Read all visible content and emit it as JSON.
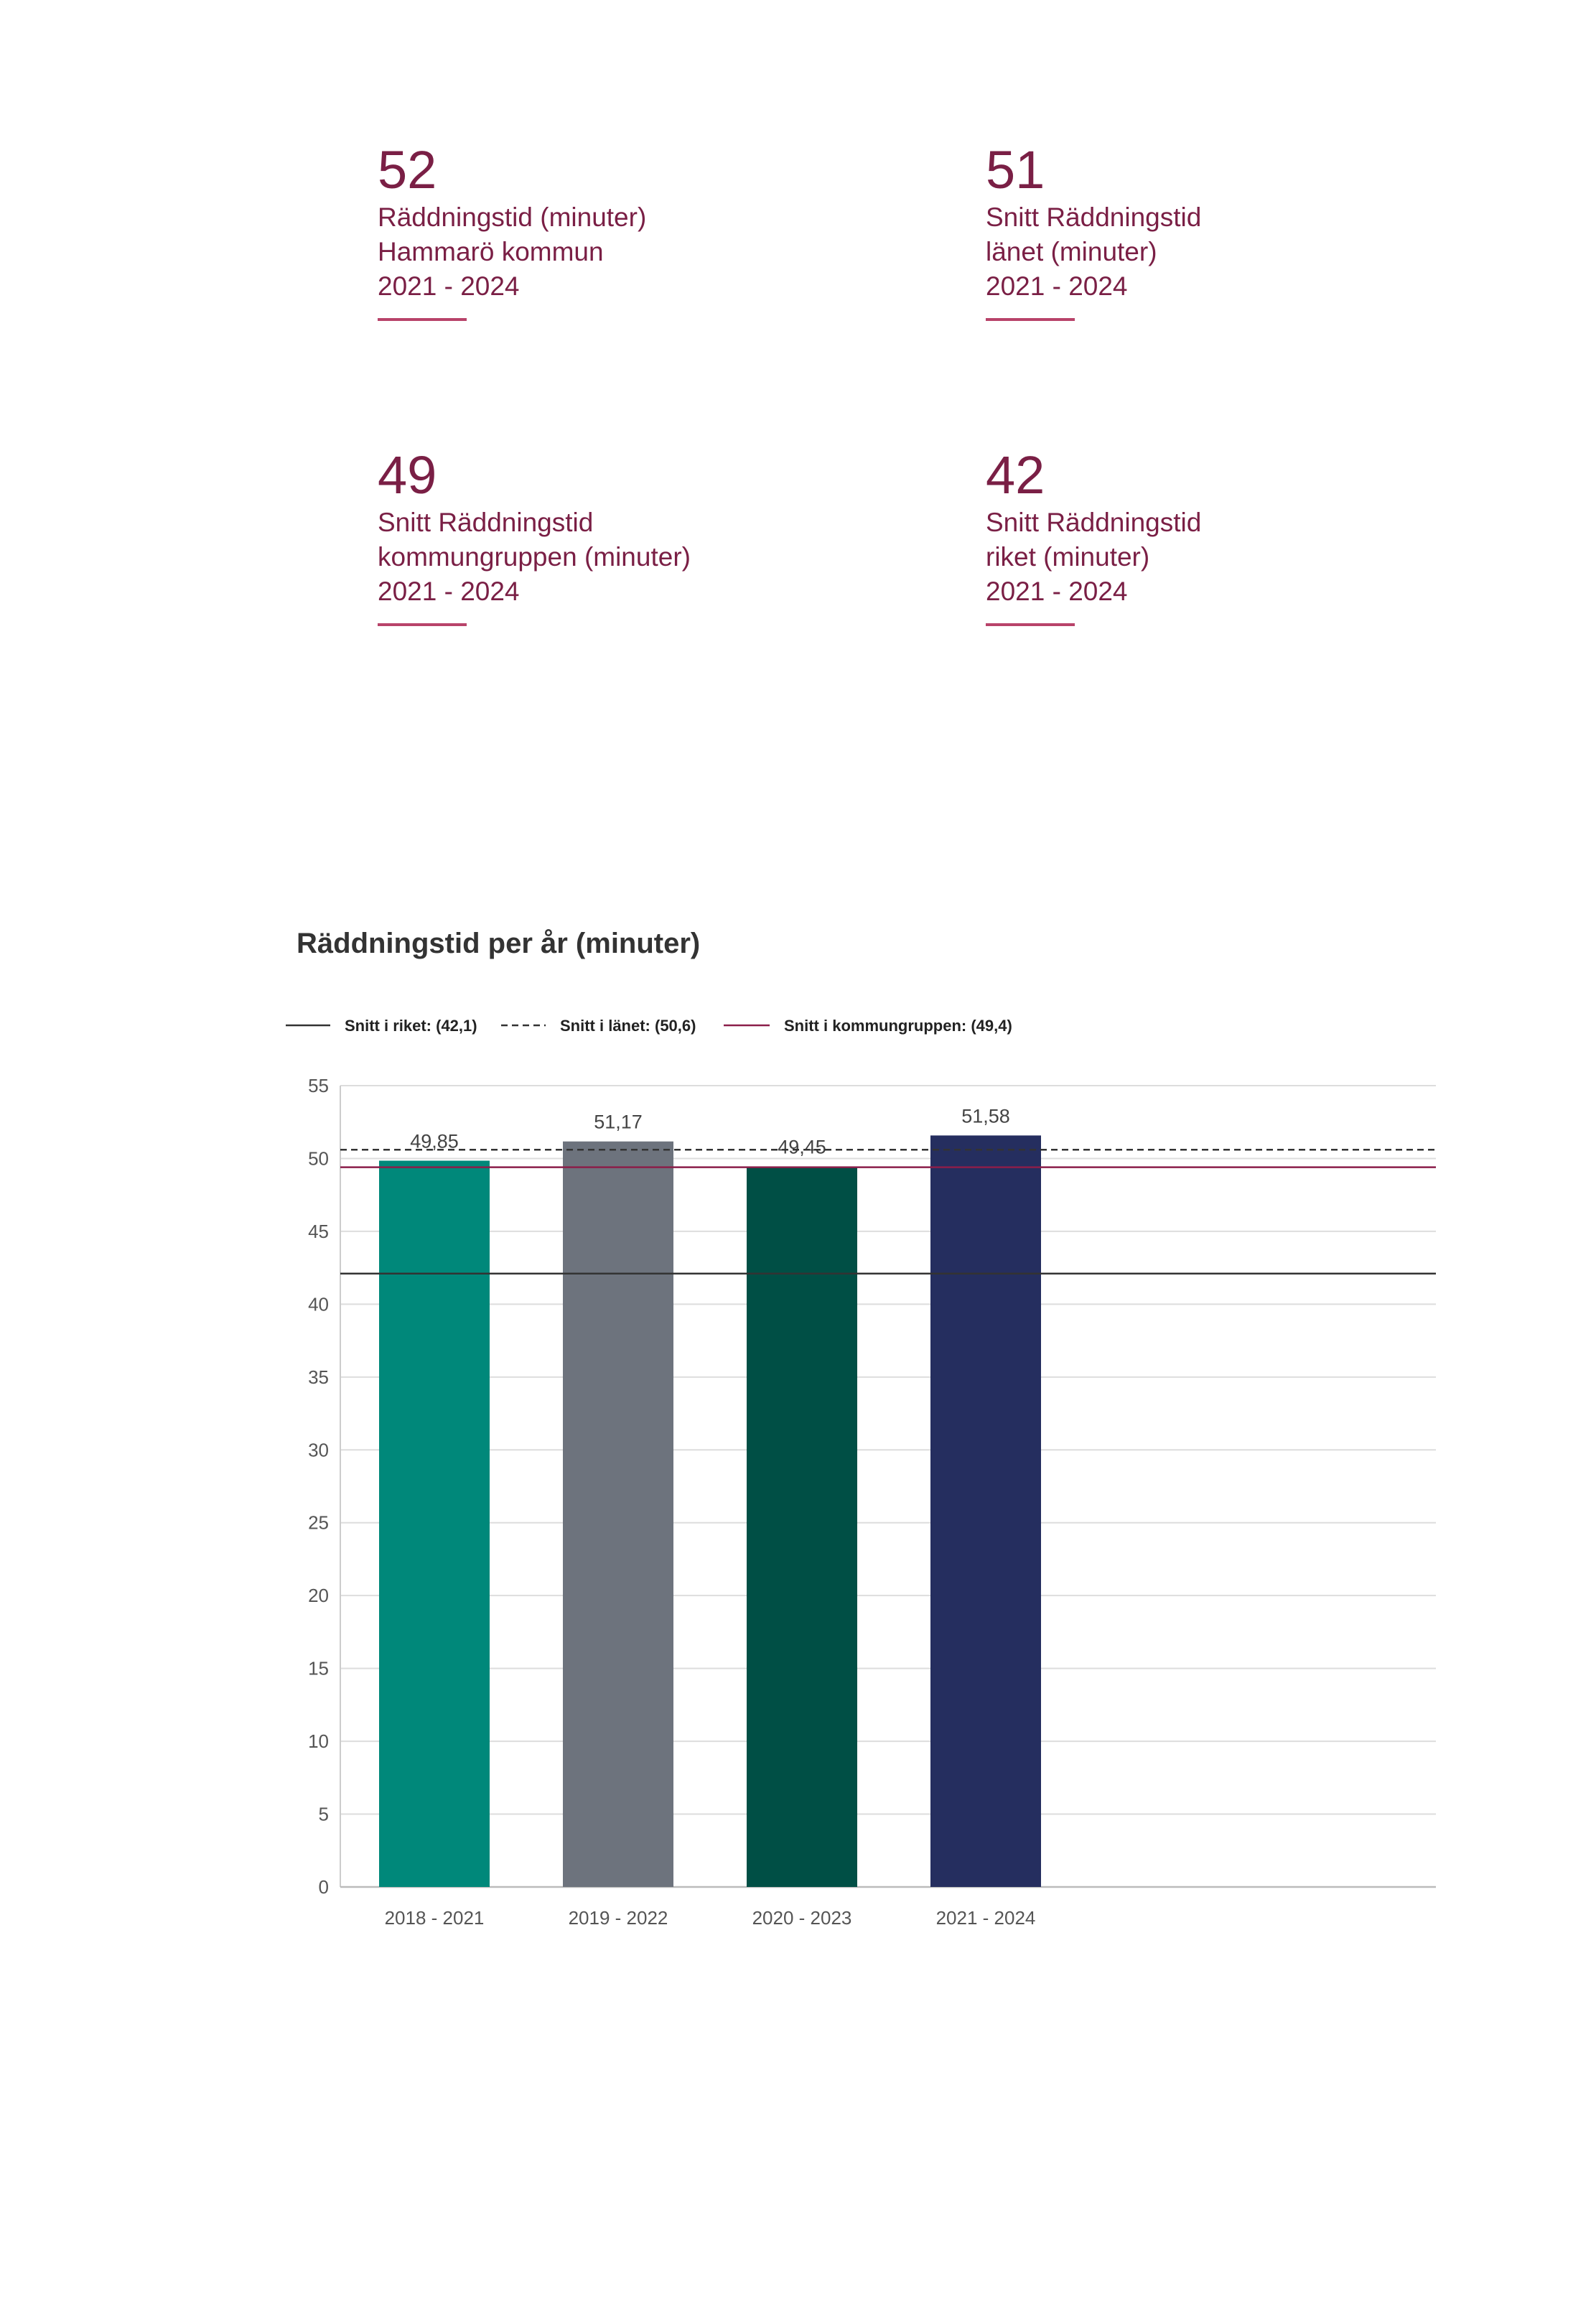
{
  "kpis": [
    {
      "value": "52",
      "lines": [
        "Räddningstid (minuter)",
        "Hammarö kommun",
        "2021 - 2024"
      ]
    },
    {
      "value": "51",
      "lines": [
        "Snitt Räddningstid",
        "länet (minuter)",
        "2021 - 2024"
      ]
    },
    {
      "value": "49",
      "lines": [
        "Snitt Räddningstid",
        "kommungruppen (minuter)",
        "2021 - 2024"
      ]
    },
    {
      "value": "42",
      "lines": [
        "Snitt Räddningstid",
        "riket (minuter)",
        "2021 - 2024"
      ]
    }
  ],
  "colors": {
    "accent": "#7a1f45",
    "accent_rule": "#b8436a"
  },
  "chart_data": {
    "type": "bar",
    "title": "Räddningstid per år (minuter)",
    "xlabel": "",
    "ylabel": "",
    "categories": [
      "2018 - 2021",
      "2019 - 2022",
      "2020 - 2023",
      "2021 - 2024"
    ],
    "values": [
      49.85,
      51.17,
      49.45,
      51.58
    ],
    "value_labels": [
      "49,85",
      "51,17",
      "49,45",
      "51,58"
    ],
    "bar_colors": [
      "#00887a",
      "#6d737d",
      "#004f45",
      "#252e5f"
    ],
    "ylim": [
      0,
      55
    ],
    "yticks": [
      0,
      5,
      10,
      15,
      20,
      25,
      30,
      35,
      40,
      45,
      50,
      55
    ],
    "grid": true,
    "legend_position": "top-left",
    "reference_lines": [
      {
        "label": "Snitt i riket: (42,1)",
        "value": 42.1,
        "color": "#333333",
        "style": "solid"
      },
      {
        "label": "Snitt i länet: (50,6)",
        "value": 50.6,
        "color": "#333333",
        "style": "dashed"
      },
      {
        "label": "Snitt i kommungruppen: (49,4)",
        "value": 49.4,
        "color": "#8b1e4a",
        "style": "solid"
      }
    ]
  }
}
